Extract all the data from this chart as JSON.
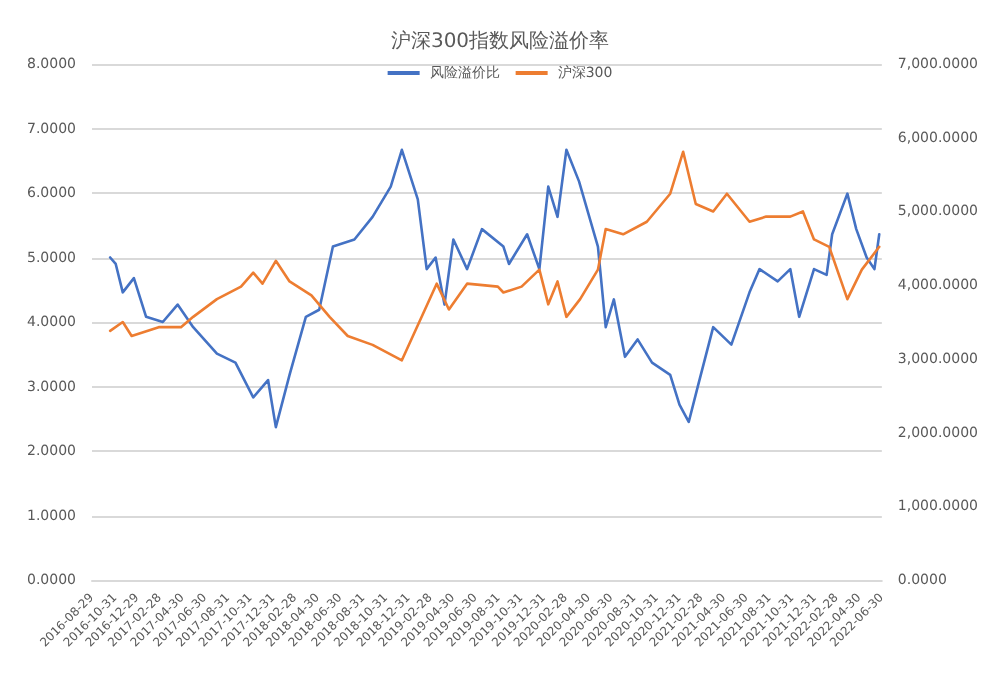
{
  "chart_data": {
    "type": "line",
    "title": "沪深300指数风险溢价率",
    "x": [
      "2016-10-17",
      "2016-11-01",
      "2016-11-20",
      "2016-12-20",
      "2017-01-22",
      "2017-03-08",
      "2017-04-17",
      "2017-05-29",
      "2017-08-01",
      "2017-09-20",
      "2017-11-07",
      "2017-12-17",
      "2018-01-07",
      "2018-02-13",
      "2018-03-29",
      "2018-05-04",
      "2018-06-10",
      "2018-08-07",
      "2018-09-25",
      "2018-11-13",
      "2018-12-13",
      "2019-01-25",
      "2019-02-18",
      "2019-03-14",
      "2019-04-07",
      "2019-05-01",
      "2019-06-07",
      "2019-07-17",
      "2019-09-13",
      "2019-09-28",
      "2019-11-16",
      "2019-12-19",
      "2020-01-12",
      "2020-02-06",
      "2020-03-01",
      "2020-04-04",
      "2020-05-25",
      "2020-06-15",
      "2020-07-07",
      "2020-08-06",
      "2020-09-09",
      "2020-10-18",
      "2020-12-06",
      "2020-12-31",
      "2021-01-25",
      "2021-02-18",
      "2021-04-01",
      "2021-05-20",
      "2021-07-08",
      "2021-08-04",
      "2021-09-22",
      "2021-10-26",
      "2021-11-19",
      "2021-12-29",
      "2022-02-01",
      "2022-02-16",
      "2022-03-29",
      "2022-04-22",
      "2022-05-20",
      "2022-06-10",
      "2022-06-23"
    ],
    "series": [
      {
        "name": "风险溢价比",
        "color": "#4472c4",
        "values": [
          5.0,
          4.9,
          4.46,
          4.68,
          4.08,
          4.0,
          4.27,
          3.92,
          3.51,
          3.37,
          2.83,
          3.1,
          2.37,
          3.18,
          4.08,
          4.19,
          5.17,
          5.28,
          5.63,
          6.1,
          6.67,
          5.9,
          4.82,
          5.0,
          4.27,
          5.28,
          4.82,
          5.44,
          5.17,
          4.9,
          5.36,
          4.82,
          6.1,
          5.63,
          6.67,
          6.18,
          5.17,
          3.92,
          4.35,
          3.46,
          3.73,
          3.37,
          3.18,
          2.72,
          2.45,
          2.99,
          3.92,
          3.65,
          4.46,
          4.82,
          4.63,
          4.82,
          4.08,
          4.82,
          4.73,
          5.36,
          5.99,
          5.44,
          5.0,
          4.82,
          5.36
        ]
      },
      {
        "name": "沪深300",
        "color": "#ed7d31",
        "axis": "y2",
        "x": [
          "2016-10-17",
          "2016-11-20",
          "2016-12-14",
          "2017-02-25",
          "2017-04-26",
          "2017-05-29",
          "2017-08-01",
          "2017-10-05",
          "2017-11-07",
          "2017-12-02",
          "2018-01-07",
          "2018-02-13",
          "2018-04-13",
          "2018-06-01",
          "2018-07-20",
          "2018-09-25",
          "2018-12-13",
          "2019-01-29",
          "2019-03-17",
          "2019-04-19",
          "2019-06-07",
          "2019-08-29",
          "2019-09-13",
          "2019-11-01",
          "2019-12-19",
          "2020-01-12",
          "2020-02-06",
          "2020-03-01",
          "2020-04-07",
          "2020-05-25",
          "2020-06-15",
          "2020-08-01",
          "2020-10-04",
          "2020-12-06",
          "2021-01-10",
          "2021-02-13",
          "2021-04-01",
          "2021-05-08",
          "2021-07-08",
          "2021-08-22",
          "2021-10-26",
          "2021-11-29",
          "2021-12-29",
          "2022-02-08",
          "2022-03-29",
          "2022-05-07",
          "2022-06-23"
        ],
        "values": [
          3380,
          3500,
          3310,
          3430,
          3430,
          3570,
          3810,
          3980,
          4170,
          4020,
          4330,
          4050,
          3860,
          3570,
          3310,
          3190,
          2980,
          3500,
          4020,
          3670,
          4020,
          3980,
          3900,
          3980,
          4210,
          3740,
          4050,
          3570,
          3810,
          4210,
          4760,
          4690,
          4860,
          5240,
          5810,
          5100,
          5000,
          5240,
          4860,
          4930,
          4930,
          5000,
          4620,
          4520,
          3810,
          4210,
          4520
        ]
      }
    ],
    "xlim": [
      "2016-08-29",
      "2022-06-30"
    ],
    "xticks": [
      "2016-08-29",
      "2016-10-31",
      "2016-12-29",
      "2017-02-28",
      "2017-04-30",
      "2017-06-30",
      "2017-08-31",
      "2017-10-31",
      "2017-12-31",
      "2018-02-28",
      "2018-04-30",
      "2018-06-30",
      "2018-08-31",
      "2018-10-31",
      "2018-12-31",
      "2019-02-28",
      "2019-04-30",
      "2019-06-30",
      "2019-08-31",
      "2019-10-31",
      "2019-12-31",
      "2020-02-28",
      "2020-04-30",
      "2020-06-30",
      "2020-08-31",
      "2020-10-31",
      "2020-12-31",
      "2021-02-28",
      "2021-04-30",
      "2021-06-30",
      "2021-08-31",
      "2021-10-31",
      "2021-12-31",
      "2022-02-28",
      "2022-04-30",
      "2022-06-30"
    ],
    "ylim": [
      0,
      8
    ],
    "yticks": [
      {
        "value": 0,
        "label": "0.0000"
      },
      {
        "value": 1,
        "label": "1.0000"
      },
      {
        "value": 2,
        "label": "2.0000"
      },
      {
        "value": 3,
        "label": "3.0000"
      },
      {
        "value": 4,
        "label": "4.0000"
      },
      {
        "value": 5,
        "label": "5.0000"
      },
      {
        "value": 6,
        "label": "6.0000"
      },
      {
        "value": 7,
        "label": "7.0000"
      },
      {
        "value": 8,
        "label": "8.0000"
      }
    ],
    "y2lim": [
      0,
      7000
    ],
    "y2ticks": [
      {
        "value": 0,
        "label": "0.0000"
      },
      {
        "value": 1000,
        "label": "1,000.0000"
      },
      {
        "value": 2000,
        "label": "2,000.0000"
      },
      {
        "value": 3000,
        "label": "3,000.0000"
      },
      {
        "value": 4000,
        "label": "4,000.0000"
      },
      {
        "value": 5000,
        "label": "5,000.0000"
      },
      {
        "value": 6000,
        "label": "6,000.0000"
      },
      {
        "value": 7000,
        "label": "7,000.0000"
      }
    ],
    "grid": "y",
    "legend": "top",
    "marker": "none",
    "line_style": "solid"
  }
}
